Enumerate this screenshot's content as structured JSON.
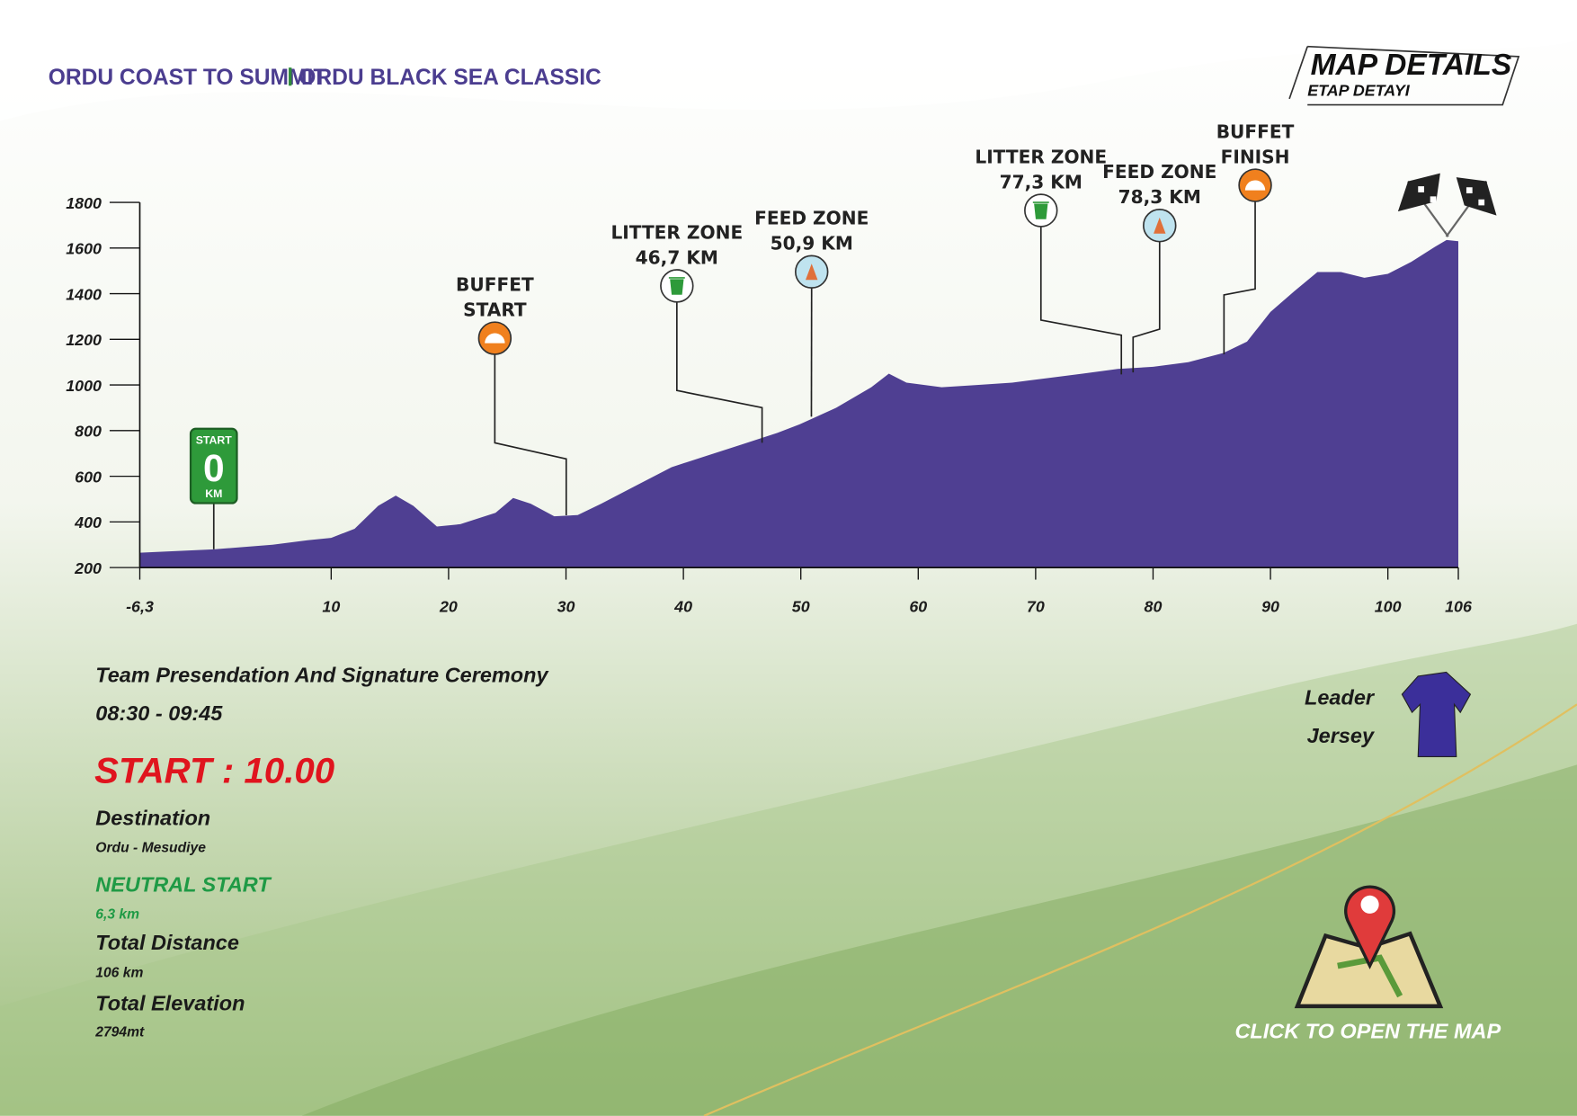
{
  "header": {
    "left": "ORDU COAST TO SUMMIT",
    "right": "ORDU BLACK SEA CLASSIC"
  },
  "badge": {
    "title": "MAP DETAILS",
    "subtitle": "ETAP DETAYI"
  },
  "chart_data": {
    "type": "area",
    "color": "#4f3f92",
    "x": [
      -6.3,
      0,
      5,
      8,
      10,
      12,
      14,
      15.5,
      17,
      19,
      21,
      24,
      25.5,
      27,
      29,
      31,
      33,
      36,
      39,
      42,
      45,
      48,
      50,
      53,
      56,
      57.5,
      59,
      62,
      65,
      68,
      71,
      74,
      77,
      80,
      83,
      86,
      88,
      90,
      92,
      94,
      96,
      98,
      100,
      102,
      104,
      105,
      106
    ],
    "values": [
      265,
      280,
      300,
      320,
      330,
      370,
      470,
      515,
      470,
      380,
      390,
      440,
      505,
      480,
      425,
      430,
      480,
      560,
      640,
      690,
      740,
      790,
      830,
      900,
      990,
      1050,
      1010,
      990,
      1000,
      1010,
      1030,
      1050,
      1070,
      1080,
      1100,
      1140,
      1190,
      1320,
      1410,
      1495,
      1495,
      1470,
      1487,
      1540,
      1605,
      1635,
      1630
    ],
    "xlim": [
      -6.3,
      106
    ],
    "xticks": [
      {
        "value": -6.3,
        "label": "-6,3"
      },
      10,
      20,
      30,
      40,
      50,
      60,
      70,
      80,
      90,
      100,
      106
    ],
    "ylim": [
      200,
      1800
    ],
    "yticks": [
      200,
      400,
      600,
      800,
      1000,
      1200,
      1400,
      1600,
      1800
    ],
    "start_marker": {
      "title": "START",
      "km": 0,
      "unit": "KM"
    },
    "annotations": [
      {
        "title": "BUFFET",
        "subtitle": "START",
        "icon": "buffet"
      },
      {
        "title": "LITTER ZONE",
        "km": 46.7,
        "km_label": "46,7 KM",
        "icon": "litter"
      },
      {
        "title": "FEED ZONE",
        "km": 50.9,
        "km_label": "50,9 KM",
        "icon": "feed"
      },
      {
        "title": "LITTER ZONE",
        "km": 77.3,
        "km_label": "77,3 KM",
        "icon": "litter"
      },
      {
        "title": "FEED ZONE",
        "km": 78.3,
        "km_label": "78,3 KM",
        "icon": "feed"
      },
      {
        "title": "BUFFET",
        "subtitle": "FINISH",
        "icon": "buffet"
      }
    ]
  },
  "info": {
    "ceremony": "Team Presendation And Signature Ceremony",
    "ceremony_time": "08:30 - 09:45",
    "start": "START : 10.00",
    "destination_label": "Destination",
    "destination": "Ordu - Mesudiye",
    "neutral_label": "NEUTRAL START",
    "neutral": "6,3 km",
    "distance_label": "Total Distance",
    "distance": "106 km",
    "elevation_label": "Total Elevation",
    "elevation": "2794mt"
  },
  "jersey": {
    "line1": "Leader",
    "line2": "Jersey"
  },
  "map_link": "CLICK TO OPEN THE MAP"
}
